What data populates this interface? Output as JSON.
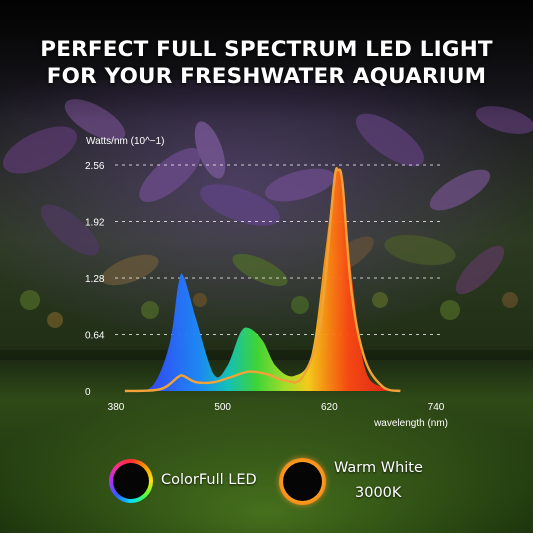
{
  "headline": {
    "line1": "PERFECT FULL SPECTRUM LED LIGHT",
    "line2": "FOR YOUR FRESHWATER AQUARIUM"
  },
  "legend": {
    "colorfull": {
      "label": "ColorFull LED"
    },
    "warm": {
      "label": "Warm White",
      "sublabel": "3000K"
    }
  },
  "colors": {
    "warm_curve": "#f3a23a",
    "grid": "#ffffff",
    "text": "#ffffff"
  },
  "chart_data": {
    "type": "area",
    "title": "",
    "ylabel": "Watts/nm (10^−1)",
    "xlabel": "wavelength (nm)",
    "xlim": [
      380,
      740
    ],
    "ylim": [
      0,
      2.56
    ],
    "x_ticks": [
      "380",
      "500",
      "620",
      "740"
    ],
    "y_ticks": [
      "0",
      "0.64",
      "1.28",
      "1.92",
      "2.56"
    ],
    "grid": "horizontal dashed",
    "series": [
      {
        "name": "ColorFull LED",
        "x": [
          390,
          420,
          440,
          450,
          456,
          470,
          490,
          505,
          520,
          530,
          545,
          560,
          580,
          600,
          615,
          625,
          630,
          635,
          645,
          660,
          680,
          700
        ],
        "y": [
          0.0,
          0.05,
          0.52,
          1.2,
          1.3,
          0.82,
          0.19,
          0.28,
          0.66,
          0.71,
          0.57,
          0.28,
          0.17,
          0.42,
          1.55,
          2.35,
          2.5,
          2.38,
          1.31,
          0.26,
          0.04,
          0.0
        ]
      },
      {
        "name": "Warm White",
        "x": [
          390,
          430,
          450,
          456,
          470,
          490,
          510,
          530,
          550,
          570,
          590,
          610,
          625,
          630,
          635,
          645,
          660,
          680,
          700
        ],
        "y": [
          0.0,
          0.02,
          0.16,
          0.17,
          0.1,
          0.1,
          0.16,
          0.22,
          0.19,
          0.12,
          0.16,
          0.78,
          2.33,
          2.5,
          2.33,
          1.11,
          0.36,
          0.05,
          0.0
        ]
      }
    ]
  }
}
